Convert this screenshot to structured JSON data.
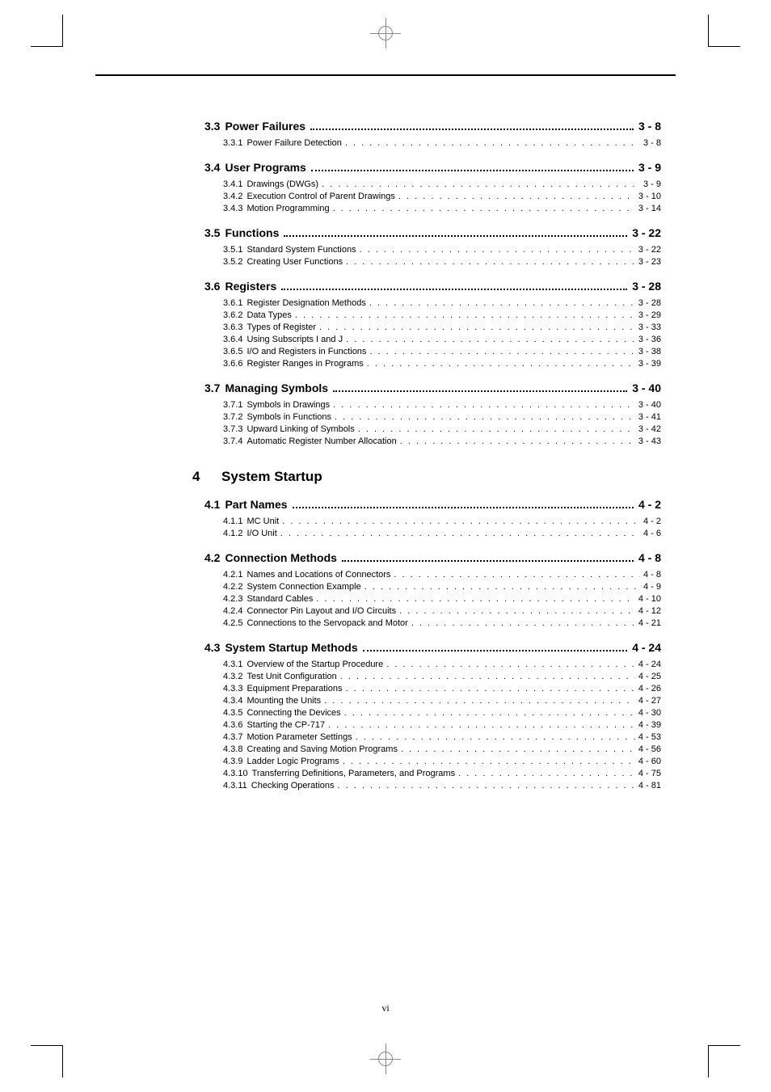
{
  "page_number": "vi",
  "sections": [
    {
      "num": "3.3",
      "title": "Power Failures",
      "page": "3 - 8",
      "subs": [
        {
          "num": "3.3.1",
          "title": "Power Failure Detection",
          "page": "3 - 8"
        }
      ]
    },
    {
      "num": "3.4",
      "title": "User Programs",
      "page": "3 - 9",
      "subs": [
        {
          "num": "3.4.1",
          "title": "Drawings (DWGs)",
          "page": "3 - 9"
        },
        {
          "num": "3.4.2",
          "title": "Execution Control of Parent Drawings",
          "page": "3 - 10"
        },
        {
          "num": "3.4.3",
          "title": "Motion Programming",
          "page": "3 - 14"
        }
      ]
    },
    {
      "num": "3.5",
      "title": "Functions",
      "page": "3 - 22",
      "subs": [
        {
          "num": "3.5.1",
          "title": "Standard System Functions",
          "page": "3 - 22"
        },
        {
          "num": "3.5.2",
          "title": "Creating User Functions",
          "page": "3 - 23"
        }
      ]
    },
    {
      "num": "3.6",
      "title": "Registers",
      "page": "3 - 28",
      "subs": [
        {
          "num": "3.6.1",
          "title": "Register Designation Methods",
          "page": "3 - 28"
        },
        {
          "num": "3.6.2",
          "title": "Data Types",
          "page": "3 - 29"
        },
        {
          "num": "3.6.3",
          "title": "Types of Register",
          "page": "3 - 33"
        },
        {
          "num": "3.6.4",
          "title": "Using Subscripts I and J",
          "page": "3 - 36"
        },
        {
          "num": "3.6.5",
          "title": "I/O and Registers in Functions",
          "page": "3 - 38"
        },
        {
          "num": "3.6.6",
          "title": "Register Ranges in Programs",
          "page": "3 - 39"
        }
      ]
    },
    {
      "num": "3.7",
      "title": "Managing Symbols",
      "page": "3 - 40",
      "subs": [
        {
          "num": "3.7.1",
          "title": "Symbols in Drawings",
          "page": "3 - 40"
        },
        {
          "num": "3.7.2",
          "title": "Symbols in Functions",
          "page": "3 - 41"
        },
        {
          "num": "3.7.3",
          "title": "Upward Linking of Symbols",
          "page": "3 - 42"
        },
        {
          "num": "3.7.4",
          "title": "Automatic Register Number Allocation",
          "page": "3 - 43"
        }
      ]
    }
  ],
  "chapter": {
    "num": "4",
    "title": "System Startup"
  },
  "sections2": [
    {
      "num": "4.1",
      "title": "Part Names",
      "page": "4 - 2",
      "subs": [
        {
          "num": "4.1.1",
          "title": "MC Unit",
          "page": "4 - 2"
        },
        {
          "num": "4.1.2",
          "title": "I/O Unit",
          "page": "4 - 6"
        }
      ]
    },
    {
      "num": "4.2",
      "title": "Connection Methods",
      "page": "4 - 8",
      "subs": [
        {
          "num": "4.2.1",
          "title": "Names and Locations of Connectors",
          "page": "4 - 8"
        },
        {
          "num": "4.2.2",
          "title": "System Connection Example",
          "page": "4 - 9"
        },
        {
          "num": "4.2.3",
          "title": "Standard Cables",
          "page": "4 - 10"
        },
        {
          "num": "4.2.4",
          "title": "Connector Pin Layout and I/O Circuits",
          "page": "4 - 12"
        },
        {
          "num": "4.2.5",
          "title": "Connections to the Servopack and Motor",
          "page": "4 - 21"
        }
      ]
    },
    {
      "num": "4.3",
      "title": "System Startup Methods",
      "page": "4 - 24",
      "subs": [
        {
          "num": "4.3.1",
          "title": "Overview of the Startup Procedure",
          "page": "4 - 24"
        },
        {
          "num": "4.3.2",
          "title": "Test Unit Configuration",
          "page": "4 - 25"
        },
        {
          "num": "4.3.3",
          "title": "Equipment Preparations",
          "page": "4 - 26"
        },
        {
          "num": "4.3.4",
          "title": "Mounting the Units",
          "page": "4 - 27"
        },
        {
          "num": "4.3.5",
          "title": "Connecting the Devices",
          "page": "4 - 30"
        },
        {
          "num": "4.3.6",
          "title": "Starting the CP-717",
          "page": "4 - 39"
        },
        {
          "num": "4.3.7",
          "title": "Motion Parameter Settings",
          "page": "4 - 53"
        },
        {
          "num": "4.3.8",
          "title": "Creating and Saving Motion Programs",
          "page": "4 - 56"
        },
        {
          "num": "4.3.9",
          "title": "Ladder Logic Programs",
          "page": "4 - 60"
        },
        {
          "num": "4.3.10",
          "title": "Transferring Definitions, Parameters, and Programs",
          "page": "4 - 75"
        },
        {
          "num": "4.3.11",
          "title": "Checking Operations",
          "page": "4 - 81"
        }
      ]
    }
  ]
}
